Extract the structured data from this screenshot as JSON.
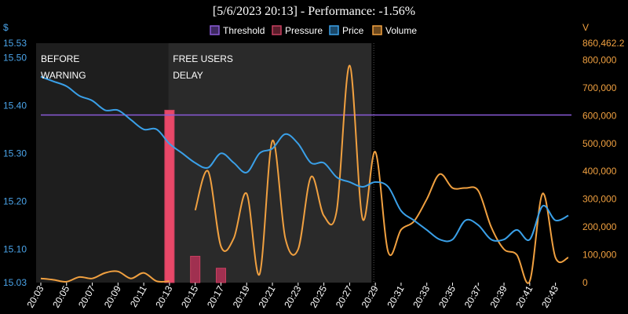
{
  "chart_data": {
    "type": "line",
    "title": "[5/6/2023 20:13] - Performance: -1.56%",
    "left_axis": {
      "unit_label": "$",
      "ylim": [
        15.03,
        15.53
      ],
      "ticks": [
        "15.53",
        "15.50",
        "15.40",
        "15.30",
        "15.20",
        "15.10",
        "15.03"
      ],
      "tick_values": [
        15.53,
        15.5,
        15.4,
        15.3,
        15.2,
        15.1,
        15.03
      ]
    },
    "right_axis": {
      "unit_label": "V",
      "ylim": [
        0,
        860462.2
      ],
      "ticks": [
        "860,462.2",
        "800,000",
        "700,000",
        "600,000",
        "500,000",
        "400,000",
        "300,000",
        "200,000",
        "100,000",
        "0"
      ],
      "tick_values": [
        860462.2,
        800000,
        700000,
        600000,
        500000,
        400000,
        300000,
        200000,
        100000,
        0
      ]
    },
    "x_labels": [
      "20:03",
      "20:05",
      "20:07",
      "20:09",
      "20:11",
      "20:13",
      "20:15",
      "20:17",
      "20:19",
      "20:21",
      "20:23",
      "20:25",
      "20:27",
      "20:29",
      "20:31",
      "20:33",
      "20:35",
      "20:37",
      "20:39",
      "20:41",
      "20:43"
    ],
    "x_range": [
      "20:03",
      "20:44"
    ],
    "regions": [
      {
        "label_lines": [
          "BEFORE",
          "WARNING"
        ],
        "from": "20:02.6",
        "to": "20:12.9",
        "fill": "#1e1e1e"
      },
      {
        "label_lines": [
          "FREE USERS",
          "DELAY"
        ],
        "from": "20:12.9",
        "to": "20:28.7",
        "fill": "#2a2a2a"
      }
    ],
    "divider_at": "20:29",
    "legend": [
      {
        "name": "Threshold",
        "color": "#8a5ad8"
      },
      {
        "name": "Pressure",
        "color": "#c84060"
      },
      {
        "name": "Price",
        "color": "#3aa0e8"
      },
      {
        "name": "Volume",
        "color": "#f0a040"
      }
    ],
    "threshold": 15.38,
    "pressure_bars": [
      {
        "x": "20:13",
        "value": 15.39,
        "color": "#e84868"
      },
      {
        "x": "20:15",
        "value": 15.085,
        "color": "#a03050"
      },
      {
        "x": "20:17",
        "value": 15.06,
        "color": "#a03050"
      }
    ],
    "price": {
      "x": [
        "20:03",
        "20:04",
        "20:05",
        "20:06",
        "20:07",
        "20:08",
        "20:09",
        "20:10",
        "20:11",
        "20:12",
        "20:13",
        "20:14",
        "20:15",
        "20:16",
        "20:17",
        "20:18",
        "20:19",
        "20:20",
        "20:21",
        "20:22",
        "20:23",
        "20:24",
        "20:25",
        "20:26",
        "20:27",
        "20:28",
        "20:29",
        "20:30",
        "20:31",
        "20:32",
        "20:33",
        "20:34",
        "20:35",
        "20:36",
        "20:37",
        "20:38",
        "20:39",
        "20:40",
        "20:41",
        "20:42",
        "20:43",
        "20:44"
      ],
      "values": [
        15.46,
        15.45,
        15.44,
        15.42,
        15.41,
        15.39,
        15.39,
        15.37,
        15.35,
        15.35,
        15.32,
        15.3,
        15.28,
        15.27,
        15.3,
        15.28,
        15.26,
        15.3,
        15.31,
        15.34,
        15.32,
        15.28,
        15.28,
        15.25,
        15.24,
        15.23,
        15.24,
        15.23,
        15.18,
        15.16,
        15.14,
        15.12,
        15.12,
        15.16,
        15.15,
        15.12,
        15.12,
        15.14,
        15.12,
        15.19,
        15.16,
        15.17
      ]
    },
    "volume": {
      "segments": [
        {
          "x": [
            "20:03",
            "20:04",
            "20:05",
            "20:06",
            "20:07",
            "20:08",
            "20:09",
            "20:10",
            "20:11",
            "20:12",
            "20:13"
          ],
          "values": [
            15000,
            10000,
            3000,
            20000,
            15000,
            35000,
            40000,
            15000,
            35000,
            5000,
            5000
          ]
        },
        {
          "x": [
            "20:15",
            "20:16",
            "20:17",
            "20:18",
            "20:19",
            "20:20",
            "20:21",
            "20:22",
            "20:23",
            "20:24",
            "20:25",
            "20:26",
            "20:27",
            "20:28",
            "20:29",
            "20:30",
            "20:31",
            "20:32",
            "20:33",
            "20:34",
            "20:35",
            "20:36",
            "20:37",
            "20:38",
            "20:39",
            "20:40",
            "20:41",
            "20:42",
            "20:43",
            "20:44"
          ],
          "values": [
            260000,
            400000,
            130000,
            160000,
            320000,
            30000,
            510000,
            160000,
            120000,
            380000,
            240000,
            260000,
            780000,
            230000,
            470000,
            110000,
            190000,
            220000,
            300000,
            390000,
            340000,
            340000,
            330000,
            200000,
            120000,
            100000,
            5000,
            320000,
            90000,
            90000
          ]
        }
      ]
    }
  }
}
